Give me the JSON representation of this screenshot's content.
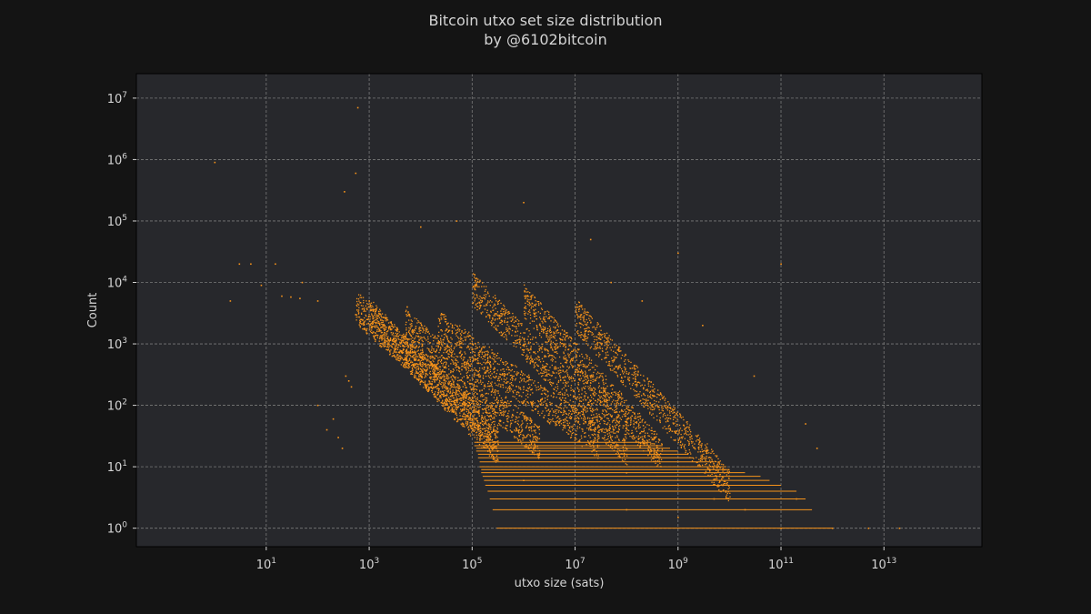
{
  "chart_data": {
    "type": "scatter",
    "title": "Bitcoin utxo set size distribution",
    "subtitle": "by @6102bitcoin",
    "xlabel": "utxo size (sats)",
    "ylabel": "Count",
    "xscale": "log",
    "yscale": "log",
    "xlim": [
      0.03,
      800000000000000
    ],
    "ylim": [
      0.5,
      25000000
    ],
    "x_ticks": [
      {
        "base": "10",
        "exp": "1",
        "value": 10
      },
      {
        "base": "10",
        "exp": "3",
        "value": 1000
      },
      {
        "base": "10",
        "exp": "5",
        "value": 100000
      },
      {
        "base": "10",
        "exp": "7",
        "value": 10000000
      },
      {
        "base": "10",
        "exp": "9",
        "value": 1000000000
      },
      {
        "base": "10",
        "exp": "11",
        "value": 100000000000
      },
      {
        "base": "10",
        "exp": "13",
        "value": 10000000000000
      }
    ],
    "y_ticks": [
      {
        "base": "10",
        "exp": "0",
        "value": 1
      },
      {
        "base": "10",
        "exp": "1",
        "value": 10
      },
      {
        "base": "10",
        "exp": "2",
        "value": 100
      },
      {
        "base": "10",
        "exp": "3",
        "value": 1000
      },
      {
        "base": "10",
        "exp": "4",
        "value": 10000
      },
      {
        "base": "10",
        "exp": "5",
        "value": 100000
      },
      {
        "base": "10",
        "exp": "6",
        "value": 1000000
      },
      {
        "base": "10",
        "exp": "7",
        "value": 10000000
      }
    ],
    "grid": true,
    "point_color": "#f7931a",
    "background_color": "#141414",
    "plot_background_color": "#27282c",
    "grid_color": "#7a7a7a",
    "series": [
      {
        "points": [
          [
            1,
            900000
          ],
          [
            6000000,
            1000
          ],
          [
            600,
            7000000
          ],
          [
            546,
            600000
          ],
          [
            330,
            300000
          ],
          [
            5,
            20000
          ],
          [
            3,
            20000
          ],
          [
            2,
            5000
          ],
          [
            8,
            9000
          ],
          [
            15,
            20000
          ],
          [
            50,
            10000
          ],
          [
            100,
            5000
          ],
          [
            20,
            6000
          ],
          [
            30,
            5800
          ],
          [
            45,
            5500
          ],
          [
            100,
            100
          ],
          [
            150,
            40
          ],
          [
            200,
            60
          ],
          [
            250,
            30
          ],
          [
            300,
            20
          ],
          [
            350,
            300
          ],
          [
            400,
            250
          ],
          [
            450,
            200
          ],
          [
            546,
            3000
          ],
          [
            700,
            2500
          ],
          [
            1000,
            5000
          ],
          [
            2000,
            2000
          ],
          [
            3000,
            1200
          ],
          [
            5000,
            1000
          ],
          [
            5460,
            4000
          ],
          [
            10000,
            600
          ],
          [
            20000,
            300
          ],
          [
            50000,
            120
          ],
          [
            100000,
            60
          ],
          [
            200000,
            30
          ],
          [
            300000,
            15
          ],
          [
            1000000,
            6
          ],
          [
            10000000,
            3
          ],
          [
            100000000,
            2
          ],
          [
            1000000000,
            1.5
          ],
          [
            100000,
            1000
          ],
          [
            1000000,
            800
          ],
          [
            1000000,
            200
          ],
          [
            10000000,
            100
          ],
          [
            10000000,
            30
          ],
          [
            100000000,
            20
          ],
          [
            100000000,
            8
          ],
          [
            1000000000,
            5
          ],
          [
            5000000000,
            3
          ],
          [
            20000000000,
            2
          ],
          [
            100000000000,
            1
          ],
          [
            1000000000000,
            1
          ],
          [
            5000000000000,
            1
          ],
          [
            20000000000000,
            1
          ],
          [
            200000000000,
            3
          ],
          [
            50000,
            100000
          ],
          [
            10000,
            80000
          ],
          [
            1000000,
            200000
          ],
          [
            20000000,
            50000
          ],
          [
            1000000000,
            30000
          ],
          [
            100000000000,
            20000
          ],
          [
            50000000,
            10000
          ],
          [
            200000000,
            5000
          ],
          [
            3000000000,
            2000
          ],
          [
            30000000000,
            300
          ],
          [
            300000000000,
            50
          ],
          [
            500000000000,
            20
          ]
        ]
      }
    ],
    "hlines": [
      {
        "count": 1,
        "x_from": 300000,
        "x_to": 1000000000000
      },
      {
        "count": 2,
        "x_from": 250000,
        "x_to": 400000000000
      },
      {
        "count": 3,
        "x_from": 220000,
        "x_to": 300000000000
      },
      {
        "count": 4,
        "x_from": 200000,
        "x_to": 200000000000
      },
      {
        "count": 5,
        "x_from": 180000,
        "x_to": 100000000000
      },
      {
        "count": 6,
        "x_from": 170000,
        "x_to": 60000000000
      },
      {
        "count": 7,
        "x_from": 160000,
        "x_to": 40000000000
      },
      {
        "count": 8,
        "x_from": 150000,
        "x_to": 20000000000
      },
      {
        "count": 9,
        "x_from": 150000,
        "x_to": 10000000000
      },
      {
        "count": 10,
        "x_from": 140000,
        "x_to": 8000000000
      },
      {
        "count": 12,
        "x_from": 140000,
        "x_to": 5000000000
      },
      {
        "count": 14,
        "x_from": 130000,
        "x_to": 2000000000
      },
      {
        "count": 16,
        "x_from": 130000,
        "x_to": 1500000000
      },
      {
        "count": 18,
        "x_from": 120000,
        "x_to": 1000000000
      },
      {
        "count": 20,
        "x_from": 120000,
        "x_to": 700000000
      },
      {
        "count": 22,
        "x_from": 110000,
        "x_to": 500000000
      },
      {
        "count": 25,
        "x_from": 110000,
        "x_to": 300000000
      }
    ],
    "dense_bands": [
      {
        "x_start": 546,
        "x_end": 320000,
        "count_start": 4000,
        "count_end": 30
      },
      {
        "x_start": 1000,
        "x_end": 320000,
        "count_start": 3000,
        "count_end": 20
      },
      {
        "x_start": 5000,
        "x_end": 2000000,
        "count_start": 2000,
        "count_end": 25
      },
      {
        "x_start": 20000,
        "x_end": 30000000,
        "count_start": 2000,
        "count_end": 25
      },
      {
        "x_start": 100000,
        "x_end": 100000000,
        "count_start": 8000,
        "count_end": 20
      },
      {
        "x_start": 1000000,
        "x_end": 500000000,
        "count_start": 5000,
        "count_end": 15
      },
      {
        "x_start": 10000000,
        "x_end": 10000000000,
        "count_start": 3000,
        "count_end": 5
      }
    ]
  }
}
